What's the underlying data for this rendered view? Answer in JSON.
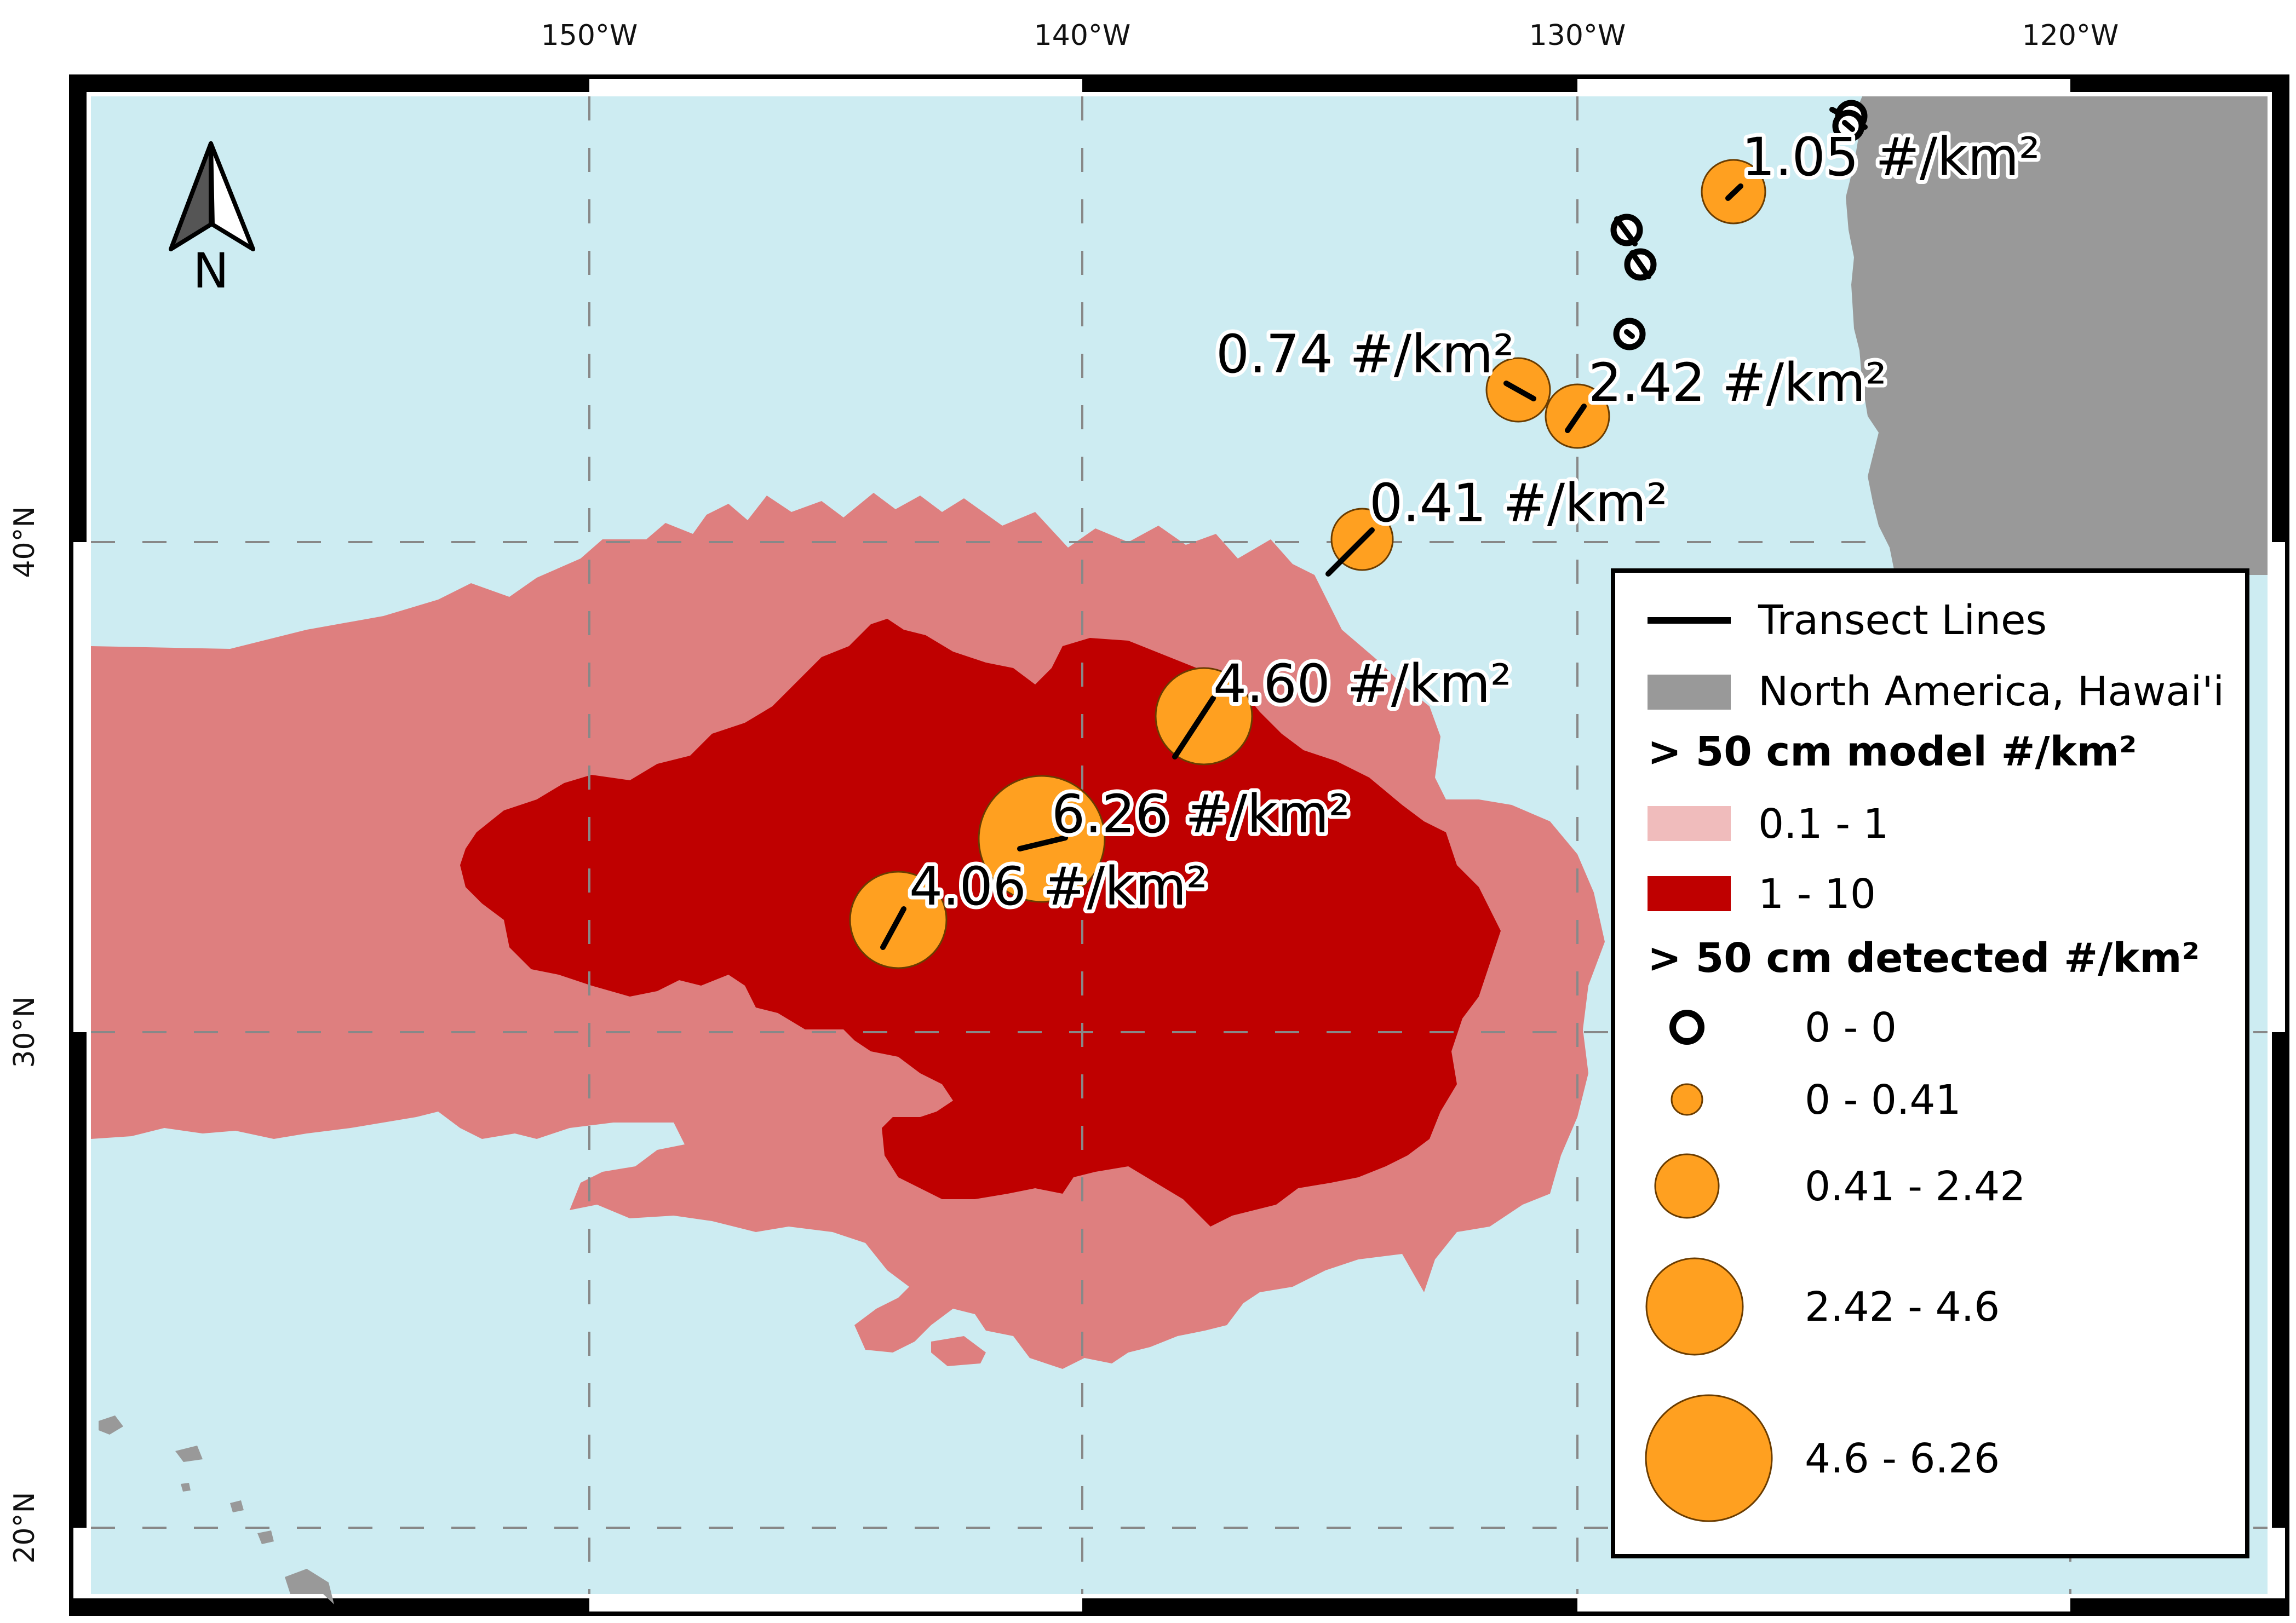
{
  "axes": {
    "longitude_ticks": [
      "150°W",
      "140°W",
      "130°W",
      "120°W"
    ],
    "latitude_ticks": [
      "40°N",
      "30°N",
      "20°N"
    ]
  },
  "north_arrow": {
    "label": "N"
  },
  "colors": {
    "ocean": "#cdecf2",
    "land": "#999999",
    "model_low": "#de7f7f",
    "model_high": "#bf0000",
    "detected": "#ffa020",
    "legend_model_low_swatch": "#f0bcbc"
  },
  "stations": [
    {
      "label": "1.05 #/km²",
      "value": 1.05
    },
    {
      "label": "0.74 #/km²",
      "value": 0.74
    },
    {
      "label": "2.42 #/km²",
      "value": 2.42
    },
    {
      "label": "0.41 #/km²",
      "value": 0.41
    },
    {
      "label": "4.60 #/km²",
      "value": 4.6
    },
    {
      "label": "6.26 #/km²",
      "value": 6.26
    },
    {
      "label": "4.06 #/km²",
      "value": 4.06
    }
  ],
  "zero_stations": [
    {
      "value": 0
    },
    {
      "value": 0
    },
    {
      "value": 0
    },
    {
      "value": 0
    },
    {
      "value": 0
    }
  ],
  "legend": {
    "transect": "Transect Lines",
    "land": "North America, Hawai'i",
    "model_heading": "> 50 cm model #/km²",
    "model_classes": [
      "0.1 - 1",
      "1 - 10"
    ],
    "detected_heading": "> 50 cm detected #/km²",
    "detected_classes": [
      "0 - 0",
      "0 - 0.41",
      "0.41 - 2.42",
      "2.42 - 4.6",
      "4.6 - 6.26"
    ]
  }
}
